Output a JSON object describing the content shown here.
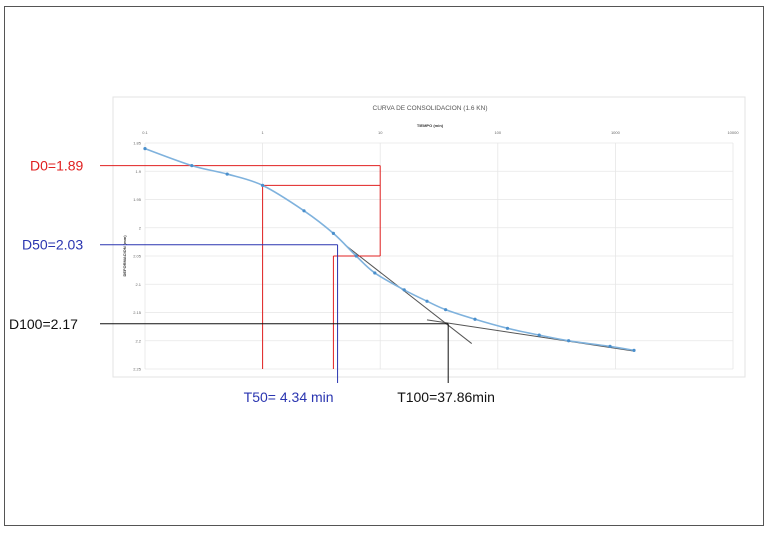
{
  "chart_data": {
    "type": "line",
    "title": "CURVA DE CONSOLIDACION (1.6 KN)",
    "xlabel": "TIEMPO (min)",
    "ylabel": "DEFORMACION (mm)",
    "x_scale": "log",
    "y_inverted": true,
    "xlim": [
      0.1,
      10000
    ],
    "ylim": [
      1.85,
      2.25
    ],
    "x_ticks": [
      "0.1",
      "1",
      "10",
      "100",
      "1000",
      "10000"
    ],
    "y_ticks": [
      "1.85",
      "1.9",
      "1.95",
      "2",
      "2.05",
      "2.1",
      "2.15",
      "2.2",
      "2.25"
    ],
    "grid": true,
    "series": [
      {
        "x": [
          0.1,
          0.25,
          0.5,
          1,
          2.25,
          4,
          6.25,
          9,
          16,
          25,
          36,
          64,
          121,
          225,
          400,
          900,
          1440
        ],
        "y": [
          1.86,
          1.89,
          1.905,
          1.925,
          1.97,
          2.01,
          2.05,
          2.08,
          2.11,
          2.13,
          2.145,
          2.162,
          2.178,
          2.19,
          2.2,
          2.21,
          2.217
        ],
        "color": "#7fb2dd"
      }
    ],
    "annotations": {
      "d0": {
        "label": "D0=1.89",
        "value": 1.89,
        "color": "#e02020"
      },
      "d50": {
        "label": "D50=2.03",
        "value": 2.03,
        "color": "#2a35b0"
      },
      "d100": {
        "label": "D100=2.17",
        "value": 2.17,
        "color": "#111111"
      },
      "t50": {
        "label": "T50= 4.34 min",
        "value": 4.34,
        "color": "#2a35b0"
      },
      "t100": {
        "label": "T100=37.86min",
        "value": 37.86,
        "color": "#111111"
      }
    }
  }
}
